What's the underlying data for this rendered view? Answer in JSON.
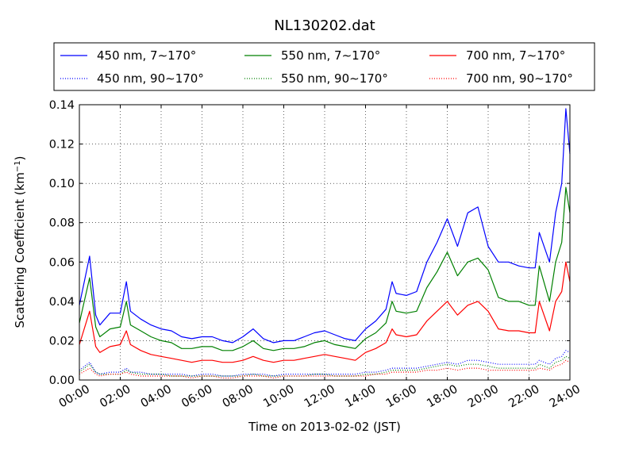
{
  "chart_data": {
    "type": "line",
    "title": "NL130202.dat",
    "xlabel": "Time on 2013-02-02 (JST)",
    "ylabel": "Scattering Coefficient (km",
    "ylabel_exponent": "−1",
    "ylabel_suffix": ")",
    "xlim": [
      "00:00",
      "24:00"
    ],
    "ylim": [
      0,
      0.14
    ],
    "grid": true,
    "legend_position": "top",
    "x_ticks": [
      "00:00",
      "02:00",
      "04:00",
      "06:00",
      "08:00",
      "10:00",
      "12:00",
      "14:00",
      "16:00",
      "18:00",
      "20:00",
      "22:00",
      "24:00"
    ],
    "y_ticks": [
      "0.00",
      "0.02",
      "0.04",
      "0.06",
      "0.08",
      "0.10",
      "0.12",
      "0.14"
    ],
    "x_hours": [
      0,
      0.5,
      0.8,
      1,
      1.5,
      2,
      2.3,
      2.5,
      3,
      3.5,
      4,
      4.5,
      5,
      5.5,
      6,
      6.5,
      7,
      7.5,
      8,
      8.5,
      9,
      9.5,
      10,
      10.5,
      11,
      11.5,
      12,
      12.5,
      13,
      13.5,
      14,
      14.5,
      15,
      15.3,
      15.5,
      16,
      16.5,
      17,
      17.5,
      18,
      18.5,
      19,
      19.5,
      20,
      20.5,
      21,
      21.5,
      22,
      22.3,
      22.5,
      23,
      23.3,
      23.6,
      23.8,
      24
    ],
    "series": [
      {
        "name": "450 nm, 7∼170°",
        "color": "#0000ff",
        "style": "solid",
        "values": [
          0.038,
          0.063,
          0.033,
          0.028,
          0.034,
          0.034,
          0.05,
          0.035,
          0.031,
          0.028,
          0.026,
          0.025,
          0.022,
          0.021,
          0.022,
          0.022,
          0.02,
          0.019,
          0.022,
          0.026,
          0.021,
          0.019,
          0.02,
          0.02,
          0.022,
          0.024,
          0.025,
          0.023,
          0.021,
          0.02,
          0.026,
          0.03,
          0.036,
          0.05,
          0.044,
          0.043,
          0.045,
          0.06,
          0.07,
          0.082,
          0.068,
          0.085,
          0.088,
          0.068,
          0.06,
          0.06,
          0.058,
          0.057,
          0.057,
          0.075,
          0.06,
          0.085,
          0.1,
          0.138,
          0.115
        ]
      },
      {
        "name": "550 nm, 7∼170°",
        "color": "#008000",
        "style": "solid",
        "values": [
          0.029,
          0.052,
          0.027,
          0.022,
          0.026,
          0.027,
          0.04,
          0.028,
          0.025,
          0.022,
          0.02,
          0.019,
          0.016,
          0.016,
          0.017,
          0.017,
          0.015,
          0.015,
          0.017,
          0.02,
          0.016,
          0.015,
          0.016,
          0.016,
          0.017,
          0.019,
          0.02,
          0.018,
          0.017,
          0.016,
          0.021,
          0.024,
          0.029,
          0.04,
          0.035,
          0.034,
          0.035,
          0.047,
          0.055,
          0.065,
          0.053,
          0.06,
          0.062,
          0.056,
          0.042,
          0.04,
          0.04,
          0.038,
          0.038,
          0.058,
          0.04,
          0.06,
          0.07,
          0.098,
          0.085
        ]
      },
      {
        "name": "700 nm, 7∼170°",
        "color": "#ff0000",
        "style": "solid",
        "values": [
          0.018,
          0.035,
          0.017,
          0.014,
          0.017,
          0.018,
          0.025,
          0.018,
          0.015,
          0.013,
          0.012,
          0.011,
          0.01,
          0.009,
          0.01,
          0.01,
          0.009,
          0.009,
          0.01,
          0.012,
          0.01,
          0.009,
          0.01,
          0.01,
          0.011,
          0.012,
          0.013,
          0.012,
          0.011,
          0.01,
          0.014,
          0.016,
          0.019,
          0.026,
          0.023,
          0.022,
          0.023,
          0.03,
          0.035,
          0.04,
          0.033,
          0.038,
          0.04,
          0.035,
          0.026,
          0.025,
          0.025,
          0.024,
          0.024,
          0.04,
          0.025,
          0.04,
          0.045,
          0.06,
          0.05
        ]
      },
      {
        "name": "450 nm, 90∼170°",
        "color": "#0000ff",
        "style": "dotted",
        "values": [
          0.005,
          0.009,
          0.004,
          0.003,
          0.004,
          0.004,
          0.006,
          0.004,
          0.004,
          0.003,
          0.003,
          0.003,
          0.003,
          0.002,
          0.003,
          0.003,
          0.002,
          0.002,
          0.003,
          0.003,
          0.003,
          0.002,
          0.003,
          0.003,
          0.003,
          0.003,
          0.003,
          0.003,
          0.003,
          0.003,
          0.004,
          0.004,
          0.005,
          0.006,
          0.006,
          0.006,
          0.006,
          0.007,
          0.008,
          0.009,
          0.008,
          0.01,
          0.01,
          0.009,
          0.008,
          0.008,
          0.008,
          0.008,
          0.008,
          0.01,
          0.008,
          0.011,
          0.012,
          0.015,
          0.014
        ]
      },
      {
        "name": "550 nm, 90∼170°",
        "color": "#008000",
        "style": "dotted",
        "values": [
          0.004,
          0.008,
          0.004,
          0.003,
          0.003,
          0.003,
          0.005,
          0.004,
          0.003,
          0.003,
          0.003,
          0.002,
          0.002,
          0.002,
          0.002,
          0.002,
          0.002,
          0.002,
          0.002,
          0.003,
          0.002,
          0.002,
          0.002,
          0.002,
          0.002,
          0.003,
          0.003,
          0.002,
          0.002,
          0.002,
          0.003,
          0.003,
          0.004,
          0.005,
          0.005,
          0.005,
          0.005,
          0.006,
          0.007,
          0.008,
          0.007,
          0.008,
          0.008,
          0.007,
          0.006,
          0.006,
          0.006,
          0.006,
          0.006,
          0.008,
          0.006,
          0.009,
          0.01,
          0.012,
          0.011
        ]
      },
      {
        "name": "700 nm, 90∼170°",
        "color": "#ff0000",
        "style": "dotted",
        "values": [
          0.003,
          0.006,
          0.003,
          0.002,
          0.003,
          0.003,
          0.004,
          0.003,
          0.002,
          0.002,
          0.002,
          0.002,
          0.002,
          0.001,
          0.002,
          0.002,
          0.001,
          0.001,
          0.002,
          0.002,
          0.002,
          0.001,
          0.002,
          0.002,
          0.002,
          0.002,
          0.002,
          0.002,
          0.002,
          0.002,
          0.002,
          0.003,
          0.003,
          0.004,
          0.004,
          0.004,
          0.004,
          0.005,
          0.005,
          0.006,
          0.005,
          0.006,
          0.006,
          0.005,
          0.005,
          0.005,
          0.005,
          0.005,
          0.005,
          0.006,
          0.005,
          0.007,
          0.008,
          0.01,
          0.009
        ]
      }
    ]
  }
}
